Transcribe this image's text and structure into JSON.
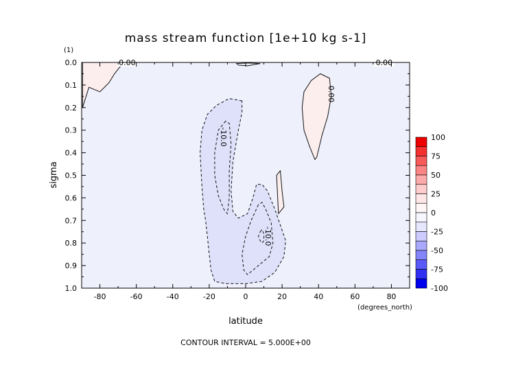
{
  "chart_data": {
    "type": "contour",
    "title": "mass stream function [1e+10 kg s-1]",
    "scale_note": "(1)",
    "xlabel": "latitude",
    "xunits": "(degrees_north)",
    "ylabel": "sigma",
    "footer": "CONTOUR INTERVAL = 5.000E+00",
    "xlim": [
      -90,
      90
    ],
    "ylim": [
      0.0,
      1.0
    ],
    "y_inverted": true,
    "x_ticks": [
      -80,
      -60,
      -40,
      -20,
      0,
      20,
      40,
      60,
      80
    ],
    "x_tick_labels": [
      "-80",
      "-60",
      "-40",
      "-20",
      "0",
      "20",
      "40",
      "60",
      "80"
    ],
    "y_ticks": [
      0.0,
      0.1,
      0.2,
      0.3,
      0.4,
      0.5,
      0.6,
      0.7,
      0.8,
      0.9,
      1.0
    ],
    "y_tick_labels": [
      "0.0",
      "0.1",
      "0.2",
      "0.3",
      "0.4",
      "0.5",
      "0.6",
      "0.7",
      "0.8",
      "0.9",
      "1.0"
    ],
    "contour_interval": 5.0,
    "background_color": "#eef0fc",
    "contour_labels": [
      {
        "text": "0.00",
        "lat": -65,
        "sigma": 0.0,
        "rotate": 0
      },
      {
        "text": "0.00",
        "lat": 76,
        "sigma": 0.0,
        "rotate": 0
      },
      {
        "text": "0.00",
        "lat": 47,
        "sigma": 0.14,
        "rotate": 90
      },
      {
        "text": "-10.0",
        "lat": -12,
        "sigma": 0.33,
        "rotate": 90
      },
      {
        "text": "-10.0",
        "lat": 12.5,
        "sigma": 0.77,
        "rotate": 90
      }
    ],
    "regions": [
      {
        "name": "positive-west-corner",
        "fill": "#fdeeee",
        "stroke": "solid",
        "points": [
          [
            -89.5,
            0.2
          ],
          [
            -86,
            0.11
          ],
          [
            -80,
            0.13
          ],
          [
            -75,
            0.09
          ],
          [
            -72,
            0.05
          ],
          [
            -69,
            0.02
          ],
          [
            -67,
            0.0
          ],
          [
            -89.5,
            0.0
          ]
        ]
      },
      {
        "name": "positive-nh-upper",
        "fill": "#fdeeee",
        "stroke": "solid",
        "points": [
          [
            38,
            0.43
          ],
          [
            35,
            0.37
          ],
          [
            32,
            0.3
          ],
          [
            31,
            0.2
          ],
          [
            32,
            0.13
          ],
          [
            36,
            0.08
          ],
          [
            41,
            0.05
          ],
          [
            46,
            0.07
          ],
          [
            47,
            0.15
          ],
          [
            45,
            0.24
          ],
          [
            42,
            0.32
          ],
          [
            39,
            0.42
          ]
        ]
      },
      {
        "name": "positive-sliver",
        "fill": "#fdeeee",
        "stroke": "solid",
        "points": [
          [
            17,
            0.5
          ],
          [
            19,
            0.48
          ],
          [
            20,
            0.57
          ],
          [
            21,
            0.64
          ],
          [
            18,
            0.67
          ]
        ]
      },
      {
        "name": "negative-outer",
        "fill": "#dfe1fb",
        "stroke": "dashed",
        "points": [
          [
            -2,
            0.17
          ],
          [
            -9,
            0.16
          ],
          [
            -16,
            0.19
          ],
          [
            -21,
            0.23
          ],
          [
            -24,
            0.3
          ],
          [
            -25,
            0.4
          ],
          [
            -24,
            0.55
          ],
          [
            -23,
            0.65
          ],
          [
            -22,
            0.7
          ],
          [
            -21,
            0.77
          ],
          [
            -20,
            0.85
          ],
          [
            -19,
            0.92
          ],
          [
            -17,
            0.97
          ],
          [
            -11,
            0.98
          ],
          [
            0,
            0.98
          ],
          [
            9,
            0.97
          ],
          [
            16,
            0.93
          ],
          [
            21,
            0.86
          ],
          [
            22,
            0.79
          ],
          [
            19,
            0.72
          ],
          [
            16,
            0.65
          ],
          [
            12,
            0.57
          ],
          [
            9,
            0.54
          ],
          [
            6,
            0.54
          ],
          [
            4,
            0.6
          ],
          [
            1,
            0.67
          ],
          [
            -4,
            0.69
          ],
          [
            -7,
            0.66
          ],
          [
            -8,
            0.57
          ],
          [
            -7,
            0.44
          ],
          [
            -4,
            0.3
          ],
          [
            -2,
            0.22
          ]
        ]
      },
      {
        "name": "negative-inner-upper",
        "fill": "none",
        "stroke": "dashed",
        "points": [
          [
            -11,
            0.26
          ],
          [
            -15,
            0.3
          ],
          [
            -17,
            0.4
          ],
          [
            -17,
            0.5
          ],
          [
            -15,
            0.59
          ],
          [
            -12,
            0.65
          ],
          [
            -10,
            0.67
          ],
          [
            -9,
            0.6
          ],
          [
            -9,
            0.48
          ],
          [
            -8,
            0.36
          ],
          [
            -9,
            0.27
          ]
        ]
      },
      {
        "name": "negative-inner-lower",
        "fill": "none",
        "stroke": "dashed",
        "points": [
          [
            7,
            0.63
          ],
          [
            3,
            0.7
          ],
          [
            0,
            0.77
          ],
          [
            -2,
            0.85
          ],
          [
            -1,
            0.92
          ],
          [
            1,
            0.94
          ],
          [
            7,
            0.9
          ],
          [
            13,
            0.86
          ],
          [
            15,
            0.8
          ],
          [
            14,
            0.71
          ],
          [
            11,
            0.65
          ],
          [
            9,
            0.62
          ]
        ]
      },
      {
        "name": "negative-small-loop",
        "fill": "none",
        "stroke": "dashed",
        "points": [
          [
            8,
            0.75
          ],
          [
            9,
            0.74
          ],
          [
            10,
            0.76
          ],
          [
            10,
            0.79
          ],
          [
            9,
            0.8
          ],
          [
            8,
            0.79
          ],
          [
            7,
            0.77
          ]
        ]
      },
      {
        "name": "positive-equator-top",
        "fill": "none",
        "stroke": "solid",
        "points": [
          [
            -5,
            0.005
          ],
          [
            1,
            0.002
          ],
          [
            8,
            0.005
          ],
          [
            1,
            0.015
          ],
          [
            -4,
            0.012
          ]
        ]
      }
    ],
    "colorbar": {
      "ticks": [
        100,
        75,
        50,
        25,
        0,
        -25,
        -50,
        -75,
        -100
      ],
      "tick_labels": [
        "100",
        "75",
        "50",
        "25",
        "0",
        "-25",
        "-50",
        "-75",
        "-100"
      ],
      "colors": [
        "#ee0000",
        "#f43030",
        "#f85a5a",
        "#fb8484",
        "#fdaaaa",
        "#fecccc",
        "#ffe6e6",
        "#fff6f6",
        "#f6f6ff",
        "#e6e6ff",
        "#ccccfe",
        "#aaaafd",
        "#8484fb",
        "#5a5af8",
        "#3030f4",
        "#0000ee"
      ]
    }
  }
}
